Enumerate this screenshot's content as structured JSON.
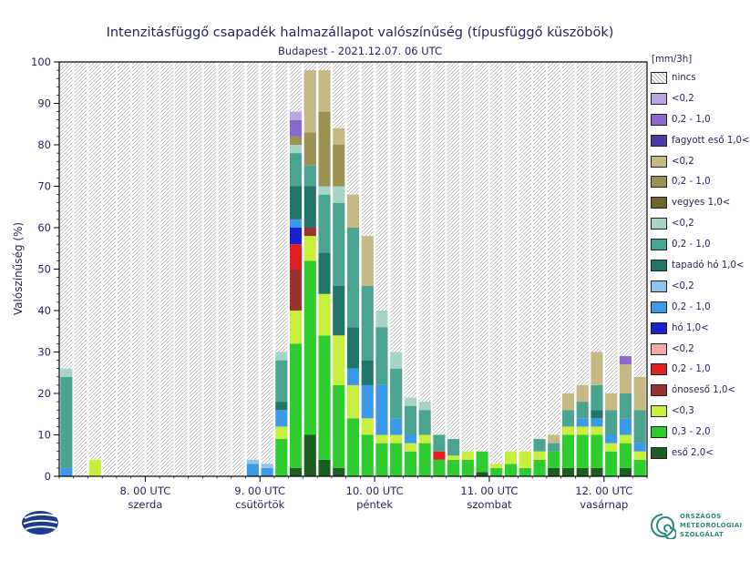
{
  "header": {
    "title": "Intenzitásfüggő csapadék halmazállapot valószínűség (típusfüggő küszöbök)",
    "subtitle": "Budapest - 2021.12.07. 06 UTC"
  },
  "footer": {
    "omsz": [
      "ORSZÁGOS",
      "METEOROLÓGIAI",
      "SZOLGÁLAT"
    ]
  },
  "chart_data": {
    "type": "stacked-bar",
    "title": "Intenzitásfüggő csapadék halmazállapot valószínűség (típusfüggő küszöbök)",
    "subtitle": "Budapest - 2021.12.07. 06 UTC",
    "ylabel": "Valószínűség (%)",
    "ylim": [
      0,
      100
    ],
    "ytick_step": 10,
    "unit_label": "[mm/3h]",
    "bar_interval_hours": 3,
    "x_day_ticks": [
      {
        "line1": "8. 00 UTC",
        "line2": "szerda",
        "boundary": 6
      },
      {
        "line1": "9. 00 UTC",
        "line2": "csütörtök",
        "boundary": 14
      },
      {
        "line1": "10. 00 UTC",
        "line2": "péntek",
        "boundary": 22
      },
      {
        "line1": "11. 00 UTC",
        "line2": "szombat",
        "boundary": 30
      },
      {
        "line1": "12. 00 UTC",
        "line2": "vasárnap",
        "boundary": 38
      }
    ],
    "colors": {
      "fagyott_lt02": "#b9a6de",
      "fagyott_02_10": "#8a68cc",
      "fagyott_10": "#4b3aa6",
      "vegyes_lt02": "#c5ba85",
      "vegyes_02_10": "#9b9152",
      "vegyes_10": "#6e6530",
      "tapado_lt02": "#a6d4c6",
      "tapado_02_10": "#4ba391",
      "tapado_10": "#23756a",
      "ho_lt02": "#8fc4ef",
      "ho_02_10": "#3b99ea",
      "ho_10": "#1f1fd0",
      "onos_lt02": "#f2a9a9",
      "onos_02_10": "#e02020",
      "onos_10": "#993333",
      "eso_lt03": "#c9ef3e",
      "eso_03_20": "#2ecc2e",
      "eso_20": "#1b5e20"
    },
    "legend": [
      {
        "key": "nincs",
        "label": "nincs",
        "hatch": true
      },
      {
        "key": "fagyott_lt02",
        "label": "<0,2"
      },
      {
        "key": "fagyott_02_10",
        "label": "0,2 - 1,0"
      },
      {
        "key": "fagyott_10",
        "label": "fagyott eső 1,0<"
      },
      {
        "key": "vegyes_lt02",
        "label": "<0,2"
      },
      {
        "key": "vegyes_02_10",
        "label": "0,2 - 1,0"
      },
      {
        "key": "vegyes_10",
        "label": "vegyes 1,0<"
      },
      {
        "key": "tapado_lt02",
        "label": "<0,2"
      },
      {
        "key": "tapado_02_10",
        "label": "0,2 - 1,0"
      },
      {
        "key": "tapado_10",
        "label": "tapadó hó 1,0<"
      },
      {
        "key": "ho_lt02",
        "label": "<0,2"
      },
      {
        "key": "ho_02_10",
        "label": "0,2 - 1,0"
      },
      {
        "key": "ho_10",
        "label": "hó 1,0<"
      },
      {
        "key": "onos_lt02",
        "label": "<0,2"
      },
      {
        "key": "onos_02_10",
        "label": "0,2 - 1,0"
      },
      {
        "key": "onos_10",
        "label": "ónoseső 1,0<"
      },
      {
        "key": "eso_lt03",
        "label": "<0,3"
      },
      {
        "key": "eso_03_20",
        "label": "0,3 - 2,0"
      },
      {
        "key": "eso_20",
        "label": "eső 2,0<"
      }
    ],
    "stack_order": [
      "eso_20",
      "eso_03_20",
      "eso_lt03",
      "onos_10",
      "onos_02_10",
      "onos_lt02",
      "ho_10",
      "ho_02_10",
      "ho_lt02",
      "tapado_10",
      "tapado_02_10",
      "tapado_lt02",
      "vegyes_10",
      "vegyes_02_10",
      "vegyes_lt02",
      "fagyott_10",
      "fagyott_02_10",
      "fagyott_lt02"
    ],
    "bars": [
      {
        "segments": {
          "ho_02_10": 2,
          "tapado_02_10": 22,
          "tapado_lt02": 2
        }
      },
      {
        "segments": {}
      },
      {
        "segments": {
          "eso_lt03": 4
        }
      },
      {
        "segments": {}
      },
      {
        "segments": {}
      },
      {
        "segments": {}
      },
      {
        "segments": {}
      },
      {
        "segments": {}
      },
      {
        "segments": {}
      },
      {
        "segments": {}
      },
      {
        "segments": {}
      },
      {
        "segments": {}
      },
      {
        "segments": {}
      },
      {
        "segments": {
          "ho_02_10": 3,
          "ho_lt02": 1
        }
      },
      {
        "segments": {
          "ho_02_10": 2,
          "ho_lt02": 1
        }
      },
      {
        "segments": {
          "eso_03_20": 9,
          "eso_lt03": 3,
          "ho_02_10": 4,
          "tapado_10": 2,
          "tapado_02_10": 10,
          "tapado_lt02": 2
        }
      },
      {
        "segments": {
          "eso_20": 2,
          "eso_03_20": 30,
          "eso_lt03": 8,
          "onos_10": 10,
          "onos_02_10": 6,
          "ho_10": 4,
          "ho_02_10": 2,
          "tapado_10": 8,
          "tapado_02_10": 8,
          "tapado_lt02": 2,
          "vegyes_02_10": 2,
          "fagyott_02_10": 4,
          "fagyott_lt02": 2
        }
      },
      {
        "segments": {
          "eso_20": 10,
          "eso_03_20": 42,
          "eso_lt03": 6,
          "onos_10": 2,
          "tapado_10": 10,
          "tapado_02_10": 5,
          "vegyes_02_10": 8,
          "vegyes_lt02": 15
        }
      },
      {
        "segments": {
          "eso_20": 4,
          "eso_03_20": 30,
          "eso_lt03": 10,
          "tapado_10": 10,
          "tapado_02_10": 14,
          "tapado_lt02": 2,
          "vegyes_02_10": 18,
          "vegyes_lt02": 10
        }
      },
      {
        "segments": {
          "eso_20": 2,
          "eso_03_20": 20,
          "eso_lt03": 12,
          "tapado_10": 12,
          "tapado_02_10": 20,
          "tapado_lt02": 4,
          "vegyes_02_10": 10,
          "vegyes_lt02": 4
        }
      },
      {
        "segments": {
          "eso_03_20": 14,
          "eso_lt03": 8,
          "ho_02_10": 4,
          "tapado_10": 10,
          "tapado_02_10": 24,
          "vegyes_lt02": 8
        }
      },
      {
        "segments": {
          "eso_03_20": 10,
          "eso_lt03": 4,
          "ho_02_10": 8,
          "tapado_10": 6,
          "tapado_02_10": 18,
          "vegyes_lt02": 12
        }
      },
      {
        "segments": {
          "eso_03_20": 8,
          "eso_lt03": 2,
          "ho_02_10": 12,
          "tapado_02_10": 14,
          "tapado_lt02": 4
        }
      },
      {
        "segments": {
          "eso_03_20": 8,
          "eso_lt03": 2,
          "ho_02_10": 4,
          "tapado_02_10": 12,
          "tapado_lt02": 4
        }
      },
      {
        "segments": {
          "eso_03_20": 6,
          "eso_lt03": 2,
          "ho_02_10": 2,
          "tapado_02_10": 7,
          "tapado_lt02": 2
        }
      },
      {
        "segments": {
          "eso_03_20": 8,
          "eso_lt03": 2,
          "tapado_02_10": 6,
          "tapado_lt02": 2
        }
      },
      {
        "segments": {
          "eso_03_20": 4,
          "onos_02_10": 2,
          "tapado_02_10": 4
        }
      },
      {
        "segments": {
          "eso_03_20": 4,
          "eso_lt03": 1,
          "tapado_02_10": 4
        }
      },
      {
        "segments": {
          "eso_03_20": 4,
          "eso_lt03": 2
        }
      },
      {
        "segments": {
          "eso_20": 1,
          "eso_03_20": 5
        }
      },
      {
        "segments": {
          "eso_03_20": 2,
          "eso_lt03": 1
        }
      },
      {
        "segments": {
          "eso_03_20": 3,
          "eso_lt03": 3
        }
      },
      {
        "segments": {
          "eso_03_20": 2,
          "eso_lt03": 4
        }
      },
      {
        "segments": {
          "eso_03_20": 4,
          "eso_lt03": 2,
          "tapado_02_10": 3
        }
      },
      {
        "segments": {
          "eso_20": 2,
          "eso_03_20": 4,
          "tapado_02_10": 2,
          "vegyes_lt02": 2
        }
      },
      {
        "segments": {
          "eso_20": 2,
          "eso_03_20": 8,
          "eso_lt03": 2,
          "tapado_02_10": 4,
          "vegyes_lt02": 4
        }
      },
      {
        "segments": {
          "eso_20": 2,
          "eso_03_20": 8,
          "eso_lt03": 2,
          "ho_02_10": 2,
          "tapado_02_10": 4,
          "vegyes_lt02": 4
        }
      },
      {
        "segments": {
          "eso_20": 2,
          "eso_03_20": 8,
          "eso_lt03": 2,
          "ho_02_10": 2,
          "tapado_10": 2,
          "tapado_02_10": 6,
          "vegyes_lt02": 8
        }
      },
      {
        "segments": {
          "eso_03_20": 6,
          "eso_lt03": 2,
          "ho_02_10": 2,
          "tapado_02_10": 6,
          "vegyes_lt02": 4
        }
      },
      {
        "segments": {
          "eso_20": 2,
          "eso_03_20": 6,
          "eso_lt03": 2,
          "ho_02_10": 4,
          "tapado_02_10": 6,
          "vegyes_lt02": 7,
          "fagyott_02_10": 2
        }
      },
      {
        "segments": {
          "eso_03_20": 4,
          "eso_lt03": 2,
          "ho_02_10": 2,
          "tapado_02_10": 8,
          "vegyes_lt02": 8
        }
      }
    ]
  }
}
